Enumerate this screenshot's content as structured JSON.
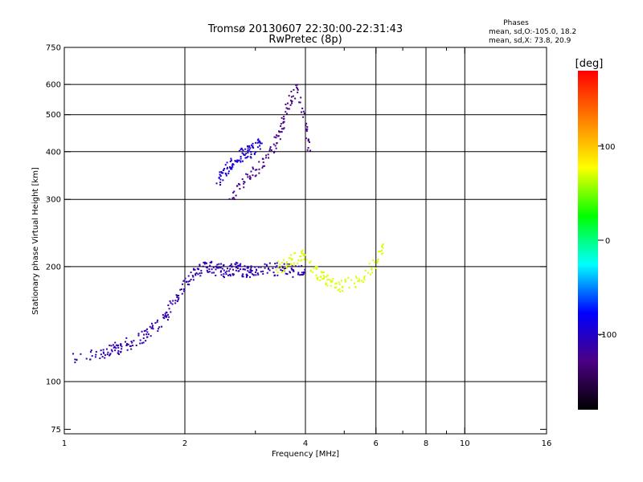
{
  "chart_data": {
    "type": "scatter",
    "title": "Tromsø 20130607 22:30:00-22:31:43",
    "subtitle": "RwPretec (8p)",
    "xlabel": "Frequency [MHz]",
    "ylabel": "Stationary phase Virtual Height [km]",
    "x_scale": "log",
    "y_scale": "log",
    "xlim": [
      1,
      16
    ],
    "ylim": [
      73,
      750
    ],
    "x_ticks": [
      1,
      2,
      4,
      6,
      8,
      10,
      16
    ],
    "x_tick_labels": [
      "1",
      "2",
      "4",
      "6",
      "8",
      "10",
      "16"
    ],
    "x_minor_ticks": [
      3,
      5,
      7,
      9
    ],
    "x_gridlines": [
      2,
      4,
      6,
      8,
      10
    ],
    "y_ticks": [
      75,
      100,
      200,
      300,
      400,
      500,
      600,
      750
    ],
    "y_tick_labels": [
      "75",
      "100",
      "200",
      "300",
      "400",
      "500",
      "600",
      "750"
    ],
    "y_gridlines": [
      100,
      200,
      300,
      400,
      500,
      600
    ],
    "grid": true,
    "stats": {
      "title": "Phases",
      "line1": "mean, sd,O:-105.0, 18.2",
      "line2": "mean, sd,X:  73.8, 20.9"
    },
    "colorbar": {
      "label": "[deg]",
      "range": [
        -180,
        180
      ],
      "ticks": [
        100,
        0,
        -100
      ],
      "tick_labels": [
        "100",
        "0",
        "-100"
      ],
      "colors": [
        "#000000",
        "#4b0082",
        "#0000ff",
        "#00ffff",
        "#00ff00",
        "#ffff00",
        "#ff7f00",
        "#ff0000"
      ]
    },
    "series": [
      {
        "phase_deg": -110,
        "freq_range": [
          1.0,
          4.2
        ],
        "description_values": {
          "x": [
            1.02,
            1.2,
            1.3,
            1.35,
            1.4,
            1.5,
            1.6,
            1.7,
            1.8,
            1.9,
            2.0,
            2.1,
            2.2,
            2.3,
            2.4,
            2.5,
            2.6,
            2.7,
            2.8,
            2.9,
            3.0,
            3.2,
            3.4,
            3.6,
            3.8,
            4.0
          ],
          "y": [
            114,
            118,
            120,
            122,
            124,
            127,
            133,
            140,
            150,
            165,
            180,
            190,
            198,
            200,
            196,
            195,
            197,
            199,
            196,
            194,
            195,
            196,
            197,
            196,
            195,
            194
          ]
        }
      },
      {
        "phase_deg": -125,
        "freq_range": [
          2.6,
          4.2
        ],
        "description_values": {
          "x": [
            2.6,
            2.8,
            3.0,
            3.2,
            3.4,
            3.5,
            3.6,
            3.8,
            4.0,
            4.1
          ],
          "y": [
            300,
            330,
            355,
            385,
            430,
            470,
            520,
            590,
            470,
            400
          ]
        }
      },
      {
        "phase_deg": -95,
        "freq_range": [
          2.4,
          3.1
        ],
        "description_values": {
          "x": [
            2.4,
            2.5,
            2.6,
            2.7,
            2.8,
            2.9,
            3.0,
            3.1
          ],
          "y": [
            330,
            350,
            370,
            385,
            395,
            400,
            410,
            420
          ]
        }
      },
      {
        "phase_deg": 70,
        "freq_range": [
          3.4,
          6.3
        ],
        "description_values": {
          "x": [
            3.4,
            3.6,
            3.8,
            4.0,
            4.3,
            4.5,
            4.7,
            5.0,
            5.5,
            6.0,
            6.3
          ],
          "y": [
            198,
            205,
            210,
            215,
            190,
            185,
            180,
            178,
            185,
            205,
            225
          ]
        }
      }
    ]
  }
}
